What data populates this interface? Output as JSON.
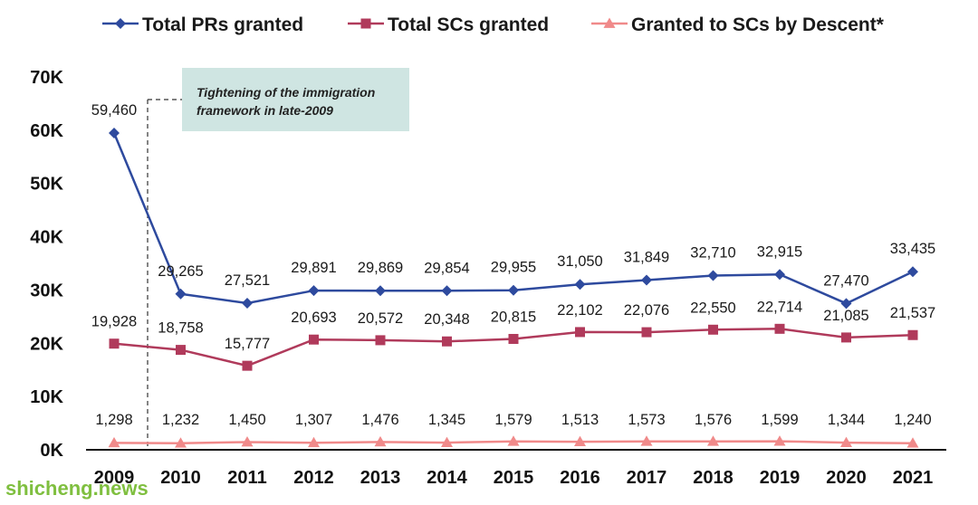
{
  "chart_data": {
    "type": "line",
    "categories": [
      "2009",
      "2010",
      "2011",
      "2012",
      "2013",
      "2014",
      "2015",
      "2016",
      "2017",
      "2018",
      "2019",
      "2020",
      "2021"
    ],
    "series": [
      {
        "name": "Total PRs granted",
        "color": "#2e4a9e",
        "marker": "diamond",
        "values": [
          59460,
          29265,
          27521,
          29891,
          29869,
          29854,
          29955,
          31050,
          31849,
          32710,
          32915,
          27470,
          33435
        ],
        "labels": [
          "59,460",
          "29,265",
          "27,521",
          "29,891",
          "29,869",
          "29,854",
          "29,955",
          "31,050",
          "31,849",
          "32,710",
          "32,915",
          "27,470",
          "33,435"
        ]
      },
      {
        "name": "Total SCs granted",
        "color": "#b03a5b",
        "marker": "square",
        "values": [
          19928,
          18758,
          15777,
          20693,
          20572,
          20348,
          20815,
          22102,
          22076,
          22550,
          22714,
          21085,
          21537
        ],
        "labels": [
          "19,928",
          "18,758",
          "15,777",
          "20,693",
          "20,572",
          "20,348",
          "20,815",
          "22,102",
          "22,076",
          "22,550",
          "22,714",
          "21,085",
          "21,537"
        ]
      },
      {
        "name": "Granted to SCs by Descent*",
        "color": "#f08a8a",
        "marker": "triangle",
        "values": [
          1298,
          1232,
          1450,
          1307,
          1476,
          1345,
          1579,
          1513,
          1573,
          1576,
          1599,
          1344,
          1240
        ],
        "labels": [
          "1,298",
          "1,232",
          "1,450",
          "1,307",
          "1,476",
          "1,345",
          "1,579",
          "1,513",
          "1,573",
          "1,576",
          "1,599",
          "1,344",
          "1,240"
        ]
      }
    ],
    "y_ticks": [
      "0K",
      "10K",
      "20K",
      "30K",
      "40K",
      "50K",
      "60K",
      "70K"
    ],
    "ylim": [
      0,
      70000
    ],
    "grid": false,
    "legend_position": "top",
    "annotation": {
      "lines": [
        "Tightening of the immigration",
        "framework in late-2009"
      ],
      "fill": "#cfe5e2"
    }
  },
  "watermark": "shicheng.news"
}
